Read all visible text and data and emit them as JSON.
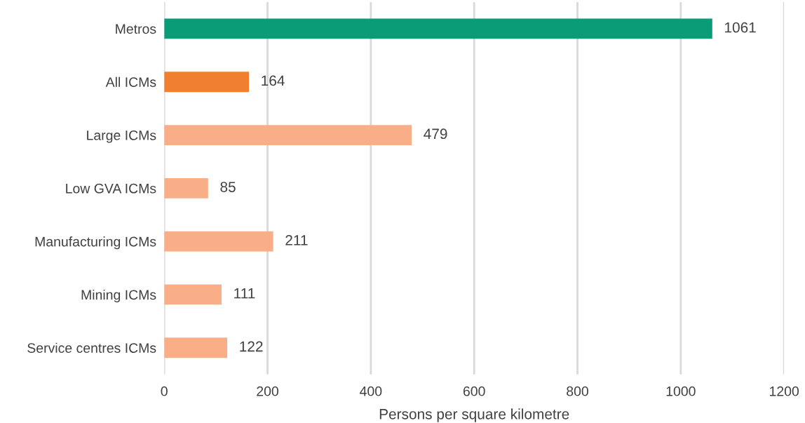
{
  "chart_data": {
    "type": "bar",
    "orientation": "horizontal",
    "categories": [
      "Metros",
      "All ICMs",
      "Large ICMs",
      "Low GVA ICMs",
      "Manufacturing ICMs",
      "Mining ICMs",
      "Service centres ICMs"
    ],
    "values": [
      1061,
      164,
      479,
      85,
      211,
      111,
      122
    ],
    "colors": [
      "#0a9b77",
      "#f07f2f",
      "#f9ae88",
      "#f9ae88",
      "#f9ae88",
      "#f9ae88",
      "#f9ae88"
    ],
    "xlim": [
      0,
      1200
    ],
    "xticks": [
      0,
      200,
      400,
      600,
      800,
      1000,
      1200
    ],
    "xlabel": "Persons per square kilometre",
    "grid": "x",
    "data_labels": true
  }
}
